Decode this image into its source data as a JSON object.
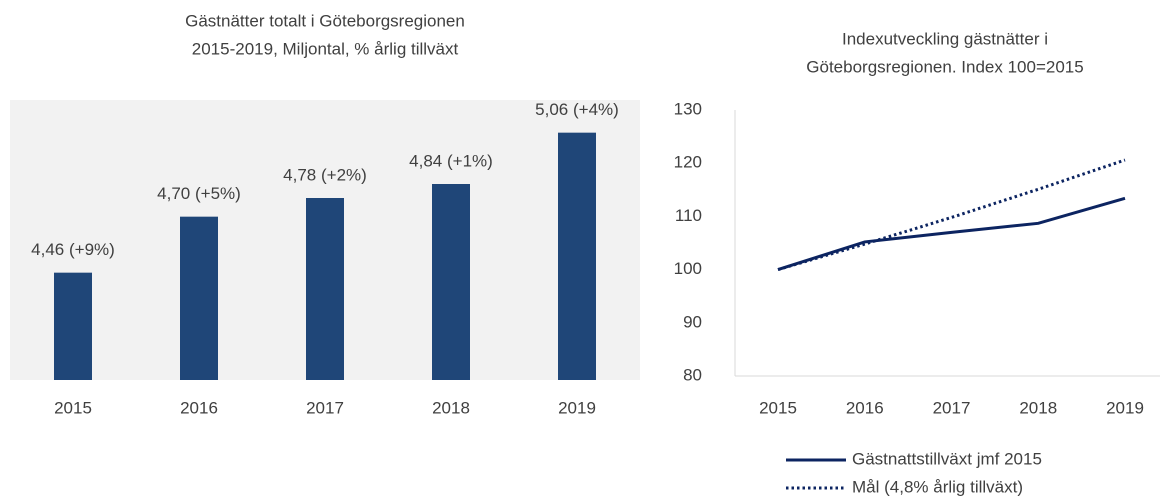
{
  "chart_data": [
    {
      "type": "bar",
      "title": [
        "Gästnätter totalt i Göteborgsregionen",
        "2015-2019, Miljontal, % årlig tillväxt"
      ],
      "categories": [
        "2015",
        "2016",
        "2017",
        "2018",
        "2019"
      ],
      "values": [
        4.46,
        4.7,
        4.78,
        4.84,
        5.06
      ],
      "value_labels": [
        "4,46 (+9%)",
        "4,70 (+5%)",
        "4,78 (+2%)",
        "4,84 (+1%)",
        "5,06 (+4%)"
      ],
      "color": "#1f4678",
      "ylim": [
        4.0,
        5.2
      ]
    },
    {
      "type": "line",
      "title": [
        "Indexutveckling gästnätter i",
        "Göteborgsregionen. Index 100=2015"
      ],
      "categories": [
        "2015",
        "2016",
        "2017",
        "2018",
        "2019"
      ],
      "series": [
        {
          "name": "Gästnattstillväxt jmf 2015",
          "color": "#0c2461",
          "values": [
            100,
            105.2,
            107,
            108.7,
            113.4
          ]
        },
        {
          "name": "Mål (4,8% årlig tillväxt)",
          "color": "#0c2461",
          "values": [
            100,
            104.8,
            109.8,
            115.1,
            120.6
          ],
          "dotted": true
        }
      ],
      "ylim": [
        80,
        130
      ],
      "yticks": [
        80,
        90,
        100,
        110,
        120,
        130
      ]
    }
  ]
}
